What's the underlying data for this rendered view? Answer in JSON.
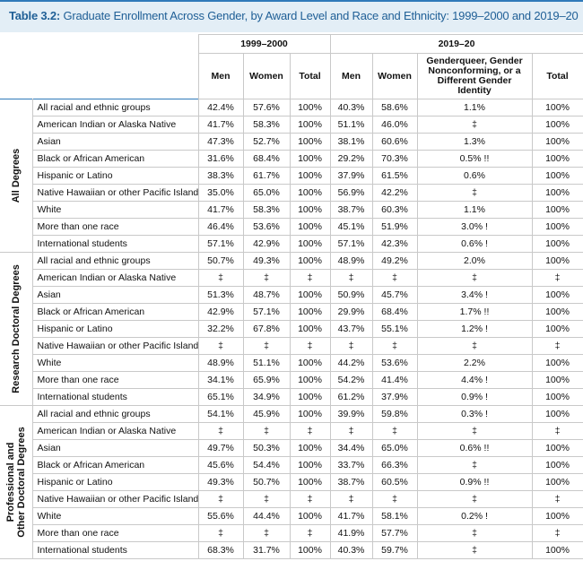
{
  "title": {
    "prefix": "Table 3.2:",
    "text": "Graduate Enrollment Across Gender, by Award Level and Race and Ethnicity: 1999–2000 and 2019–20"
  },
  "period_1999": "1999–2000",
  "period_2019": "2019–20",
  "columns": {
    "men": "Men",
    "women": "Women",
    "total": "Total",
    "gq": "Genderqueer, Gender Nonconforming, or a Different Gender Identity"
  },
  "groups": [
    {
      "label": "All Degrees",
      "rows": [
        {
          "race": "All racial and ethnic groups",
          "m99": "42.4%",
          "w99": "57.6%",
          "t99": "100%",
          "m19": "40.3%",
          "w19": "58.6%",
          "g19": "1.1%",
          "t19": "100%"
        },
        {
          "race": "American Indian or Alaska Native",
          "m99": "41.7%",
          "w99": "58.3%",
          "t99": "100%",
          "m19": "51.1%",
          "w19": "46.0%",
          "g19": "‡",
          "t19": "100%"
        },
        {
          "race": "Asian",
          "m99": "47.3%",
          "w99": "52.7%",
          "t99": "100%",
          "m19": "38.1%",
          "w19": "60.6%",
          "g19": "1.3%",
          "t19": "100%"
        },
        {
          "race": "Black or African American",
          "m99": "31.6%",
          "w99": "68.4%",
          "t99": "100%",
          "m19": "29.2%",
          "w19": "70.3%",
          "g19": "0.5% !!",
          "t19": "100%"
        },
        {
          "race": "Hispanic or Latino",
          "m99": "38.3%",
          "w99": "61.7%",
          "t99": "100%",
          "m19": "37.9%",
          "w19": "61.5%",
          "g19": "0.6%",
          "t19": "100%"
        },
        {
          "race": "Native Hawaiian or other Pacific Islander",
          "m99": "35.0%",
          "w99": "65.0%",
          "t99": "100%",
          "m19": "56.9%",
          "w19": "42.2%",
          "g19": "‡",
          "t19": "100%"
        },
        {
          "race": "White",
          "m99": "41.7%",
          "w99": "58.3%",
          "t99": "100%",
          "m19": "38.7%",
          "w19": "60.3%",
          "g19": "1.1%",
          "t19": "100%"
        },
        {
          "race": "More than one race",
          "m99": "46.4%",
          "w99": "53.6%",
          "t99": "100%",
          "m19": "45.1%",
          "w19": "51.9%",
          "g19": "3.0% !",
          "t19": "100%"
        },
        {
          "race": "International students",
          "m99": "57.1%",
          "w99": "42.9%",
          "t99": "100%",
          "m19": "57.1%",
          "w19": "42.3%",
          "g19": "0.6% !",
          "t19": "100%"
        }
      ]
    },
    {
      "label": "Research Doctoral Degrees",
      "rows": [
        {
          "race": "All racial and ethnic groups",
          "m99": "50.7%",
          "w99": "49.3%",
          "t99": "100%",
          "m19": "48.9%",
          "w19": "49.2%",
          "g19": "2.0%",
          "t19": "100%"
        },
        {
          "race": "American Indian or Alaska Native",
          "m99": "‡",
          "w99": "‡",
          "t99": "‡",
          "m19": "‡",
          "w19": "‡",
          "g19": "‡",
          "t19": "‡"
        },
        {
          "race": "Asian",
          "m99": "51.3%",
          "w99": "48.7%",
          "t99": "100%",
          "m19": "50.9%",
          "w19": "45.7%",
          "g19": "3.4% !",
          "t19": "100%"
        },
        {
          "race": "Black or African American",
          "m99": "42.9%",
          "w99": "57.1%",
          "t99": "100%",
          "m19": "29.9%",
          "w19": "68.4%",
          "g19": "1.7% !!",
          "t19": "100%"
        },
        {
          "race": "Hispanic or Latino",
          "m99": "32.2%",
          "w99": "67.8%",
          "t99": "100%",
          "m19": "43.7%",
          "w19": "55.1%",
          "g19": "1.2% !",
          "t19": "100%"
        },
        {
          "race": "Native Hawaiian or other Pacific Islander",
          "m99": "‡",
          "w99": "‡",
          "t99": "‡",
          "m19": "‡",
          "w19": "‡",
          "g19": "‡",
          "t19": "‡"
        },
        {
          "race": "White",
          "m99": "48.9%",
          "w99": "51.1%",
          "t99": "100%",
          "m19": "44.2%",
          "w19": "53.6%",
          "g19": "2.2%",
          "t19": "100%"
        },
        {
          "race": "More than one race",
          "m99": "34.1%",
          "w99": "65.9%",
          "t99": "100%",
          "m19": "54.2%",
          "w19": "41.4%",
          "g19": "4.4% !",
          "t19": "100%"
        },
        {
          "race": "International students",
          "m99": "65.1%",
          "w99": "34.9%",
          "t99": "100%",
          "m19": "61.2%",
          "w19": "37.9%",
          "g19": "0.9% !",
          "t19": "100%"
        }
      ]
    },
    {
      "label": "Professional and Other Doctoral Degrees",
      "label_line1": "Professional and",
      "label_line2": "Other Doctoral Degrees",
      "rows": [
        {
          "race": "All racial and ethnic groups",
          "m99": "54.1%",
          "w99": "45.9%",
          "t99": "100%",
          "m19": "39.9%",
          "w19": "59.8%",
          "g19": "0.3% !",
          "t19": "100%"
        },
        {
          "race": "American Indian or Alaska Native",
          "m99": "‡",
          "w99": "‡",
          "t99": "‡",
          "m19": "‡",
          "w19": "‡",
          "g19": "‡",
          "t19": "‡"
        },
        {
          "race": "Asian",
          "m99": "49.7%",
          "w99": "50.3%",
          "t99": "100%",
          "m19": "34.4%",
          "w19": "65.0%",
          "g19": "0.6% !!",
          "t19": "100%"
        },
        {
          "race": "Black or African American",
          "m99": "45.6%",
          "w99": "54.4%",
          "t99": "100%",
          "m19": "33.7%",
          "w19": "66.3%",
          "g19": "‡",
          "t19": "100%"
        },
        {
          "race": "Hispanic or Latino",
          "m99": "49.3%",
          "w99": "50.7%",
          "t99": "100%",
          "m19": "38.7%",
          "w19": "60.5%",
          "g19": "0.9% !!",
          "t19": "100%"
        },
        {
          "race": "Native Hawaiian or other Pacific Islander",
          "m99": "‡",
          "w99": "‡",
          "t99": "‡",
          "m19": "‡",
          "w19": "‡",
          "g19": "‡",
          "t19": "‡"
        },
        {
          "race": "White",
          "m99": "55.6%",
          "w99": "44.4%",
          "t99": "100%",
          "m19": "41.7%",
          "w19": "58.1%",
          "g19": "0.2% !",
          "t19": "100%"
        },
        {
          "race": "More than one race",
          "m99": "‡",
          "w99": "‡",
          "t99": "‡",
          "m19": "41.9%",
          "w19": "57.7%",
          "g19": "‡",
          "t19": "‡"
        },
        {
          "race": "International students",
          "m99": "68.3%",
          "w99": "31.7%",
          "t99": "100%",
          "m19": "40.3%",
          "w19": "59.7%",
          "g19": "‡",
          "t19": "100%"
        }
      ]
    }
  ]
}
